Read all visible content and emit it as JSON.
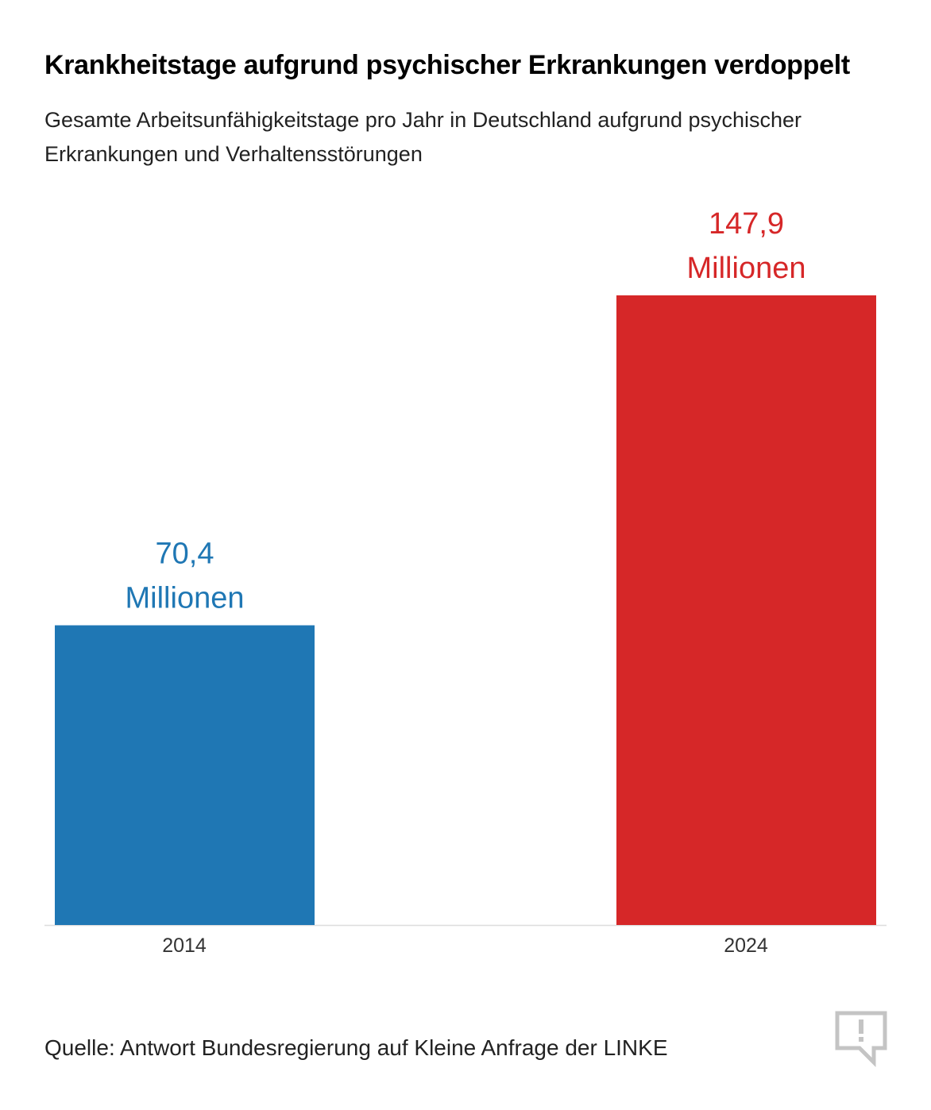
{
  "title": "Krankheitstage aufgrund psychischer Erkrankungen verdoppelt",
  "subtitle": "Gesamte Arbeitsunfähigkeitstage pro Jahr in Deutschland aufgrund psychischer Erkrankungen und Verhaltensstörungen",
  "source": "Quelle: Antwort Bundesregierung auf Kleine Anfrage der LINKE",
  "logo_icon": "speech-bubble-exclamation-icon",
  "chart_data": {
    "type": "bar",
    "categories": [
      "2014",
      "2024"
    ],
    "values": [
      70.4,
      147.9
    ],
    "unit": "Millionen",
    "data_labels": [
      [
        "70,4",
        "Millionen"
      ],
      [
        "147,9",
        "Millionen"
      ]
    ],
    "colors": [
      "#1f77b4",
      "#d62728"
    ],
    "axis_color": "#dddddd",
    "ylim": [
      0,
      147.9
    ],
    "grid": false,
    "legend": "none"
  }
}
